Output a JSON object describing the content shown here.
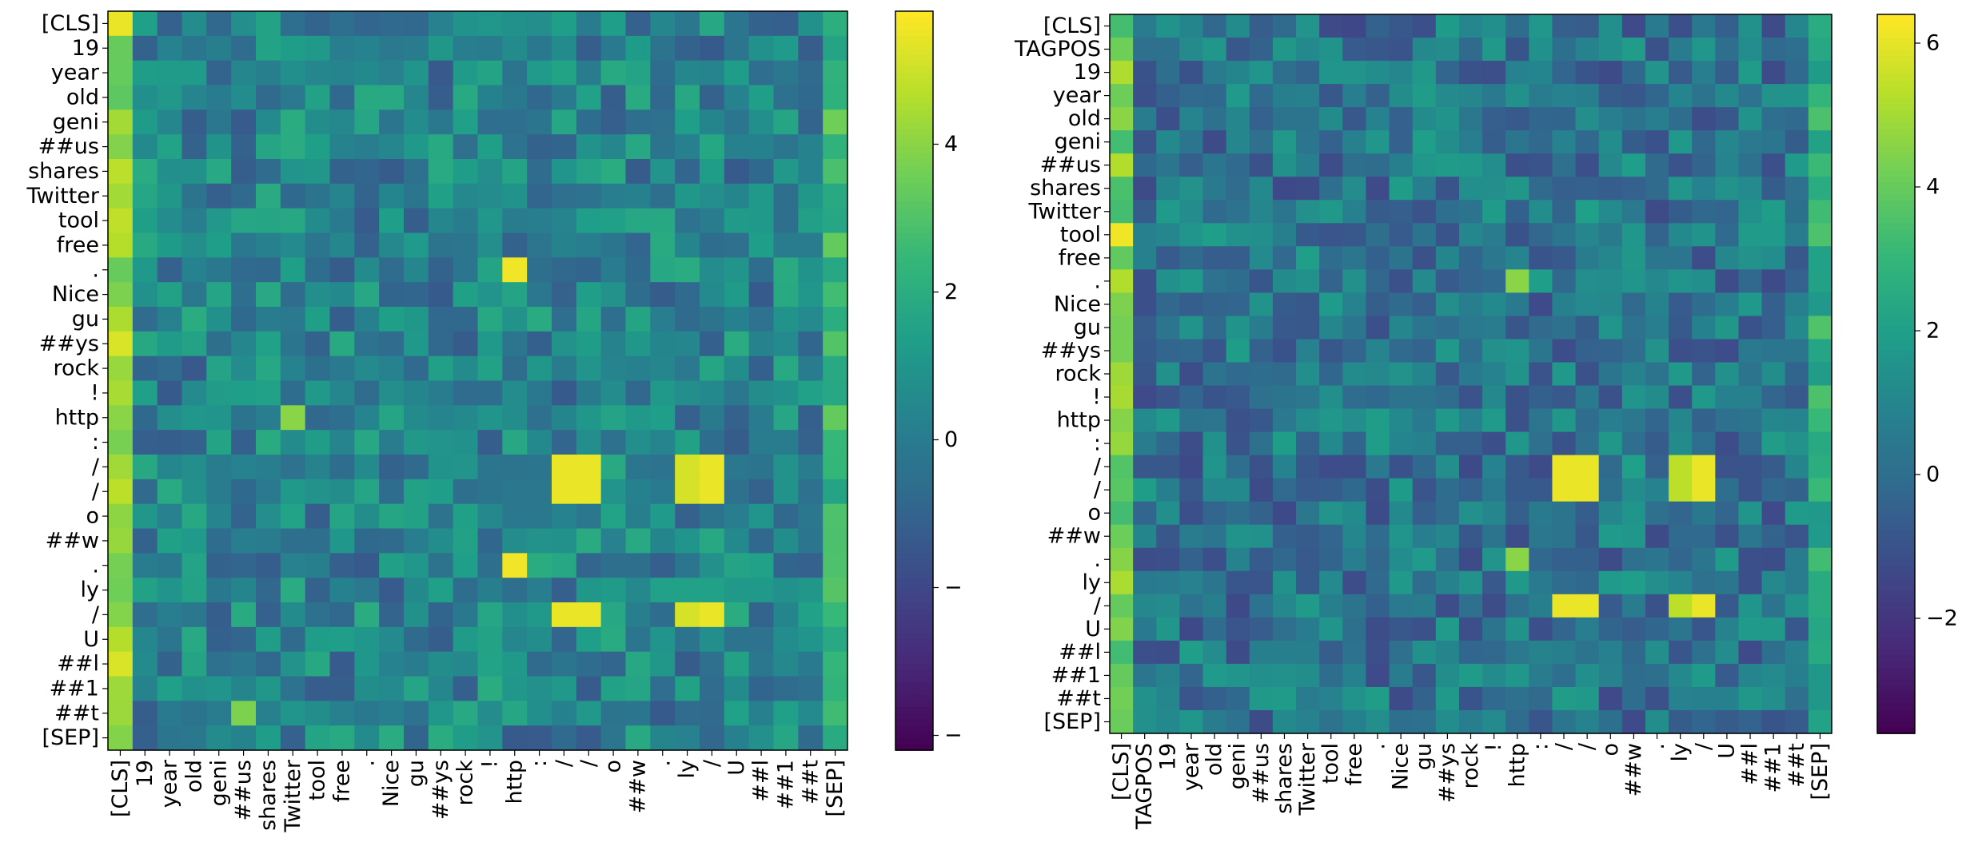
{
  "chart_data": [
    {
      "type": "heatmap",
      "title": "",
      "colormap": "viridis",
      "row_labels": [
        "[CLS]",
        "19",
        "year",
        "old",
        "geni",
        "##us",
        "shares",
        "Twitter",
        "tool",
        "free",
        ".",
        "Nice",
        "gu",
        "##ys",
        "rock",
        "!",
        "http",
        ":",
        "/",
        "/",
        "o",
        "##w",
        ".",
        "ly",
        "/",
        "U",
        "##l",
        "##1",
        "##t",
        "[SEP]"
      ],
      "col_labels": [
        "[CLS]",
        "19",
        "year",
        "old",
        "geni",
        "##us",
        "shares",
        "Twitter",
        "tool",
        "free",
        ".",
        "Nice",
        "gu",
        "##ys",
        "rock",
        "!",
        "http",
        ":",
        "/",
        "/",
        "o",
        "##w",
        ".",
        "ly",
        "/",
        "U",
        "##l",
        "##1",
        "##t",
        "[SEP]"
      ],
      "vmin": -4.2,
      "vmax": 5.8,
      "colorbar_ticks": [
        -4,
        -2,
        0,
        2,
        4
      ],
      "colorbar_tick_labels": [
        "−",
        "−",
        "0",
        "2",
        "4"
      ],
      "high_cells": [
        {
          "row": ".",
          "col": "http",
          "value": 5.6
        },
        {
          "row": "/",
          "col": "/",
          "value": 5.4
        },
        {
          "row": "/",
          "col": "ly",
          "value": 5.2
        },
        {
          "row": "http",
          "col": "Twitter",
          "value": 4.0
        },
        {
          "row": "[CLS]",
          "col": "[CLS]",
          "value": 5.5
        },
        {
          "row": "##t",
          "col": "##us",
          "value": 3.8
        }
      ]
    },
    {
      "type": "heatmap",
      "title": "",
      "colormap": "viridis",
      "row_labels": [
        "[CLS]",
        "TAGPOS",
        "19",
        "year",
        "old",
        "geni",
        "##us",
        "shares",
        "Twitter",
        "tool",
        "free",
        ".",
        "Nice",
        "gu",
        "##ys",
        "rock",
        "!",
        "http",
        ":",
        "/",
        "/",
        "o",
        "##w",
        ".",
        "ly",
        "/",
        "U",
        "##l",
        "##1",
        "##t",
        "[SEP]"
      ],
      "col_labels": [
        "[CLS]",
        "TAGPOS",
        "19",
        "year",
        "old",
        "geni",
        "##us",
        "shares",
        "Twitter",
        "tool",
        "free",
        ".",
        "Nice",
        "gu",
        "##ys",
        "rock",
        "!",
        "http",
        ":",
        "/",
        "/",
        "o",
        "##w",
        ".",
        "ly",
        "/",
        "U",
        "##l",
        "##1",
        "##t",
        "[SEP]"
      ],
      "vmin": -3.6,
      "vmax": 6.4,
      "colorbar_ticks": [
        -2,
        0,
        2,
        4,
        6
      ],
      "colorbar_tick_labels": [
        "−2",
        "0",
        "2",
        "4",
        "6"
      ],
      "high_cells": [
        {
          "row": "/",
          "col": "/",
          "value": 5.8
        },
        {
          "row": "/",
          "col": "ly",
          "value": 5.4
        },
        {
          "row": "tool",
          "col": "[CLS]",
          "value": 6.2
        },
        {
          "row": ".",
          "col": "http",
          "value": 4.6
        }
      ]
    }
  ]
}
